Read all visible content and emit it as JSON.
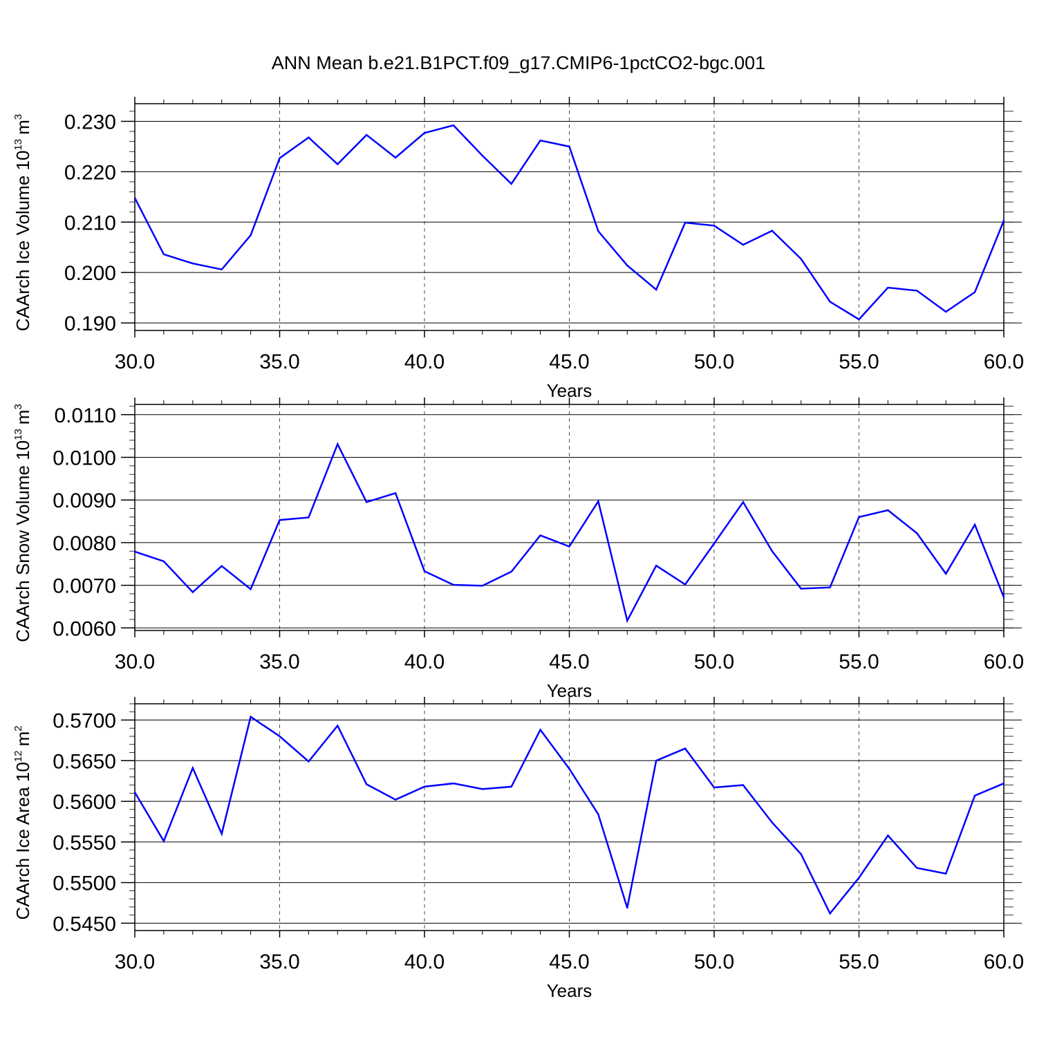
{
  "title": "ANN Mean b.e21.B1PCT.f09_g17.CMIP6-1pctCO2-bgc.001",
  "colors": {
    "line": "#0000ff",
    "axis": "#000000",
    "grid": "#000000"
  },
  "chart_data": [
    {
      "type": "line",
      "ylabel": "CAArch Ice Volume 10",
      "ylabel_exp": "13",
      "ylabel_unit": "m",
      "ylabel_unit_exp": "3",
      "xlabel": "Years",
      "xlim": [
        30,
        60
      ],
      "ylim": [
        0.1885,
        0.2335
      ],
      "xticks": [
        30,
        35,
        40,
        45,
        50,
        55,
        60
      ],
      "xtick_labels": [
        "30.0",
        "35.0",
        "40.0",
        "45.0",
        "50.0",
        "55.0",
        "60.0"
      ],
      "yticks": [
        0.19,
        0.2,
        0.21,
        0.22,
        0.23
      ],
      "ytick_labels": [
        "0.190",
        "0.200",
        "0.210",
        "0.220",
        "0.230"
      ],
      "grid": "vertical dashed at major x ticks",
      "x": [
        30,
        31,
        32,
        33,
        34,
        35,
        36,
        37,
        38,
        39,
        40,
        41,
        42,
        43,
        44,
        45,
        46,
        47,
        48,
        49,
        50,
        51,
        52,
        53,
        54,
        55,
        56,
        57,
        58,
        59,
        60
      ],
      "y": [
        0.2148,
        0.2036,
        0.2018,
        0.2006,
        0.2074,
        0.2227,
        0.2268,
        0.2215,
        0.2273,
        0.2228,
        0.2277,
        0.2292,
        0.2232,
        0.2176,
        0.2262,
        0.225,
        0.2082,
        0.2014,
        0.1966,
        0.2099,
        0.2093,
        0.2055,
        0.2083,
        0.2027,
        0.1942,
        0.1907,
        0.197,
        0.1964,
        0.1922,
        0.1961,
        0.2103
      ]
    },
    {
      "type": "line",
      "ylabel": "CAArch Snow Volume 10",
      "ylabel_exp": "13",
      "ylabel_unit": "m",
      "ylabel_unit_exp": "3",
      "xlabel": "Years",
      "xlim": [
        30,
        60
      ],
      "ylim": [
        0.00594,
        0.01124
      ],
      "xticks": [
        30,
        35,
        40,
        45,
        50,
        55,
        60
      ],
      "xtick_labels": [
        "30.0",
        "35.0",
        "40.0",
        "45.0",
        "50.0",
        "55.0",
        "60.0"
      ],
      "yticks": [
        0.006,
        0.007,
        0.008,
        0.009,
        0.01,
        0.011
      ],
      "ytick_labels": [
        "0.0060",
        "0.0070",
        "0.0080",
        "0.0090",
        "0.0100",
        "0.0110"
      ],
      "grid": "vertical dashed at major x ticks",
      "x": [
        30,
        31,
        32,
        33,
        34,
        35,
        36,
        37,
        38,
        39,
        40,
        41,
        42,
        43,
        44,
        45,
        46,
        47,
        48,
        49,
        50,
        51,
        52,
        53,
        54,
        55,
        56,
        57,
        58,
        59,
        60
      ],
      "y": [
        0.00779,
        0.00756,
        0.00684,
        0.00745,
        0.00691,
        0.00853,
        0.00859,
        0.01031,
        0.00895,
        0.00916,
        0.00733,
        0.00701,
        0.00699,
        0.00732,
        0.00817,
        0.00791,
        0.00897,
        0.00617,
        0.00746,
        0.00702,
        0.00798,
        0.00895,
        0.0078,
        0.00692,
        0.00695,
        0.0086,
        0.00876,
        0.00822,
        0.00727,
        0.00842,
        0.00672
      ]
    },
    {
      "type": "line",
      "ylabel": "CAArch Ice Area 10",
      "ylabel_exp": "12",
      "ylabel_unit": "m",
      "ylabel_unit_exp": "2",
      "xlabel": "Years",
      "xlim": [
        30,
        60
      ],
      "ylim": [
        0.5441,
        0.572
      ],
      "xticks": [
        30,
        35,
        40,
        45,
        50,
        55,
        60
      ],
      "xtick_labels": [
        "30.0",
        "35.0",
        "40.0",
        "45.0",
        "50.0",
        "55.0",
        "60.0"
      ],
      "yticks": [
        0.545,
        0.55,
        0.555,
        0.56,
        0.565,
        0.57
      ],
      "ytick_labels": [
        "0.5450",
        "0.5500",
        "0.5550",
        "0.5600",
        "0.5650",
        "0.5700"
      ],
      "grid": "vertical dashed at major x ticks",
      "x": [
        30,
        31,
        32,
        33,
        34,
        35,
        36,
        37,
        38,
        39,
        40,
        41,
        42,
        43,
        44,
        45,
        46,
        47,
        48,
        49,
        50,
        51,
        52,
        53,
        54,
        55,
        56,
        57,
        58,
        59,
        60
      ],
      "y": [
        0.5611,
        0.5551,
        0.5641,
        0.556,
        0.5704,
        0.568,
        0.5649,
        0.5693,
        0.5621,
        0.5602,
        0.5618,
        0.5622,
        0.5615,
        0.5618,
        0.5688,
        0.564,
        0.5584,
        0.5469,
        0.565,
        0.5665,
        0.5617,
        0.562,
        0.5574,
        0.5535,
        0.5462,
        0.5506,
        0.5558,
        0.5518,
        0.5511,
        0.5607,
        0.5622
      ]
    }
  ]
}
